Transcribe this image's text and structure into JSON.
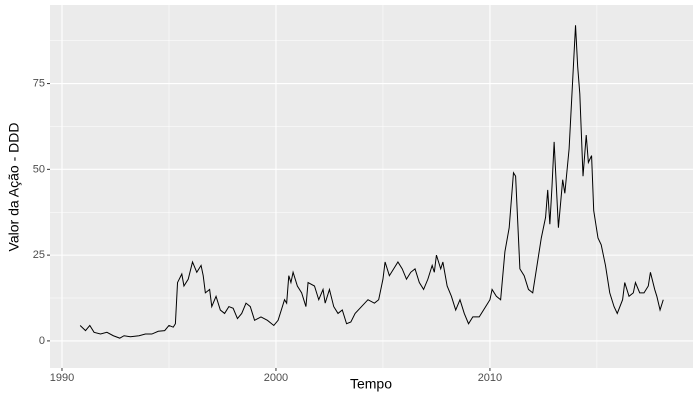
{
  "chart_data": {
    "type": "line",
    "x_label": "Tempo",
    "y_label": "Valor da Ação - DDD",
    "x": [
      1990.85,
      1991.1,
      1991.3,
      1991.5,
      1991.8,
      1992.1,
      1992.4,
      1992.7,
      1992.9,
      1993.2,
      1993.6,
      1993.9,
      1994.2,
      1994.5,
      1994.8,
      1995.0,
      1995.2,
      1995.3,
      1995.4,
      1995.6,
      1995.7,
      1995.9,
      1996.1,
      1996.3,
      1996.5,
      1996.6,
      1996.7,
      1996.9,
      1997.0,
      1997.2,
      1997.4,
      1997.6,
      1997.8,
      1998.0,
      1998.2,
      1998.4,
      1998.6,
      1998.8,
      1999.0,
      1999.3,
      1999.6,
      1999.9,
      2000.1,
      2000.3,
      2000.4,
      2000.5,
      2000.6,
      2000.7,
      2000.8,
      2001.0,
      2001.2,
      2001.4,
      2001.5,
      2001.8,
      2002.0,
      2002.2,
      2002.3,
      2002.5,
      2002.7,
      2002.9,
      2003.1,
      2003.3,
      2003.5,
      2003.7,
      2004.0,
      2004.3,
      2004.6,
      2004.8,
      2005.0,
      2005.1,
      2005.3,
      2005.5,
      2005.7,
      2005.9,
      2006.1,
      2006.3,
      2006.5,
      2006.7,
      2006.9,
      2007.1,
      2007.3,
      2007.4,
      2007.5,
      2007.7,
      2007.8,
      2008.0,
      2008.2,
      2008.4,
      2008.6,
      2008.8,
      2009.0,
      2009.2,
      2009.5,
      2009.8,
      2010.0,
      2010.1,
      2010.3,
      2010.5,
      2010.7,
      2010.9,
      2011.1,
      2011.2,
      2011.4,
      2011.6,
      2011.8,
      2012.0,
      2012.2,
      2012.4,
      2012.6,
      2012.7,
      2012.8,
      2012.9,
      2013.0,
      2013.2,
      2013.4,
      2013.5,
      2013.7,
      2013.9,
      2014.0,
      2014.1,
      2014.2,
      2014.35,
      2014.5,
      2014.6,
      2014.75,
      2014.85,
      2015.05,
      2015.2,
      2015.4,
      2015.6,
      2015.8,
      2015.95,
      2016.2,
      2016.3,
      2016.5,
      2016.7,
      2016.8,
      2017.0,
      2017.2,
      2017.4,
      2017.5,
      2017.7,
      2017.8,
      2017.95,
      2018.1
    ],
    "values": [
      4.5,
      3,
      4.5,
      2.5,
      2,
      2.5,
      1.5,
      0.8,
      1.5,
      1.2,
      1.5,
      2,
      2,
      2.8,
      3,
      4.5,
      4,
      5,
      17,
      19.5,
      16,
      18,
      23,
      20,
      22,
      19,
      14,
      15,
      10,
      13,
      9,
      8,
      10,
      9.5,
      6.5,
      8,
      11,
      10,
      6,
      7,
      6,
      4.5,
      6,
      10,
      12,
      11,
      19,
      17,
      20,
      16,
      14,
      10,
      17,
      16,
      12,
      15,
      11,
      15,
      10,
      8,
      9,
      5,
      5.5,
      8,
      10,
      12,
      11,
      12,
      18,
      23,
      19,
      21,
      23,
      21,
      18,
      20,
      21,
      17,
      15,
      18,
      22,
      20,
      25,
      21,
      23,
      16,
      13,
      9,
      12,
      8,
      5,
      7,
      7,
      10,
      12,
      15,
      13,
      12,
      26,
      33,
      49,
      48,
      21,
      19,
      15,
      14,
      22,
      30,
      36,
      44,
      34,
      45,
      58,
      33,
      47,
      43,
      56,
      80,
      92,
      80,
      72,
      48,
      60,
      52,
      54,
      38,
      30,
      28,
      22,
      14,
      10,
      8,
      12,
      17,
      13,
      14,
      17,
      14,
      14,
      16,
      20,
      15,
      13,
      9,
      12
    ],
    "color": "#000000",
    "xlim": [
      1989.44,
      2019.49
    ],
    "xticks": [
      1990,
      2000,
      2010
    ],
    "xminor": [
      1995,
      2005,
      2015
    ],
    "ylim": [
      -7.9,
      97.9
    ],
    "yticks": [
      0,
      25,
      50,
      75
    ],
    "yminor": [
      12.5,
      37.5,
      62.5,
      87.5
    ],
    "grid": true,
    "panel_color": "#ebebeb"
  }
}
